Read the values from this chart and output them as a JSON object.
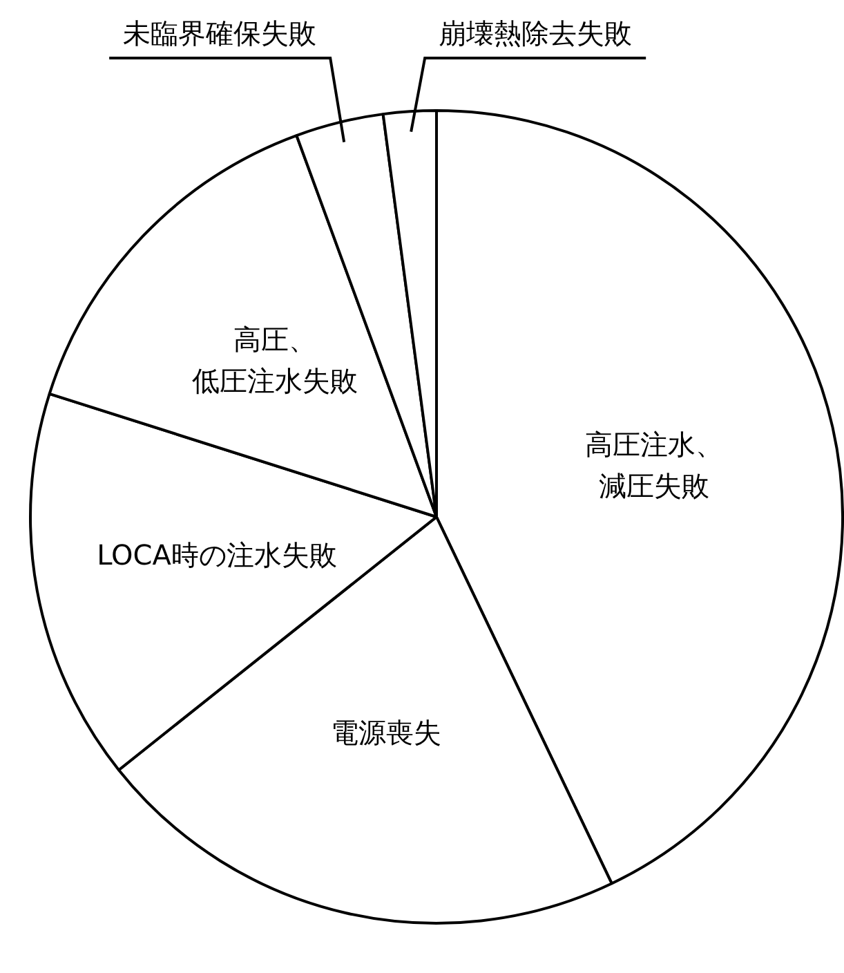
{
  "chart_data": {
    "type": "pie",
    "categories": [
      "高圧注水、減圧失敗",
      "電源喪失",
      "LOCA時の注水失敗",
      "高圧、低圧注水失敗",
      "未臨界確保失敗",
      "崩壊熱除去失敗"
    ],
    "values": [
      42.9,
      21.4,
      15.6,
      14.5,
      3.5,
      2.1
    ],
    "colors": [
      "#ffffff",
      "#ffffff",
      "#ffffff",
      "#ffffff",
      "#ffffff",
      "#ffffff"
    ],
    "legend": false
  }
}
